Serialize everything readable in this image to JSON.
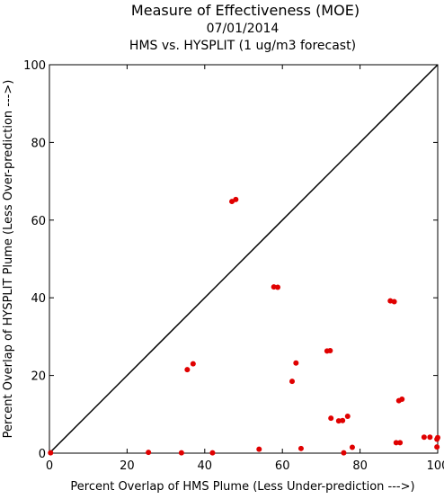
{
  "chart_data": {
    "type": "scatter",
    "title": "Measure of Effectiveness (MOE)",
    "subtitle_date": "07/01/2014",
    "subtitle_desc": "HMS vs. HYSPLIT  (1 ug/m3 forecast)",
    "xlabel": "Percent Overlap of HMS Plume (Less Under-prediction --->)",
    "ylabel": "Percent Overlap of HYSPLIT Plume (Less Over-prediction --->)",
    "xlim": [
      0,
      100
    ],
    "ylim": [
      0,
      100
    ],
    "xticks": [
      "0",
      "20",
      "40",
      "60",
      "80",
      "100"
    ],
    "yticks": [
      "0",
      "20",
      "40",
      "60",
      "80",
      "100"
    ],
    "grid": false,
    "reference_line": "diagonal y = x",
    "marker_color": "#e00000",
    "points": [
      {
        "x": 0.3,
        "y": 0.1
      },
      {
        "x": 25.5,
        "y": 0.2
      },
      {
        "x": 34.0,
        "y": 0.1
      },
      {
        "x": 42.0,
        "y": 0.1
      },
      {
        "x": 35.5,
        "y": 21.5
      },
      {
        "x": 37.0,
        "y": 23.0
      },
      {
        "x": 47.0,
        "y": 64.8
      },
      {
        "x": 48.0,
        "y": 65.3
      },
      {
        "x": 54.0,
        "y": 1.0
      },
      {
        "x": 57.8,
        "y": 42.8
      },
      {
        "x": 58.8,
        "y": 42.7
      },
      {
        "x": 62.5,
        "y": 18.5
      },
      {
        "x": 63.5,
        "y": 23.2
      },
      {
        "x": 64.8,
        "y": 1.2
      },
      {
        "x": 71.5,
        "y": 26.3
      },
      {
        "x": 72.3,
        "y": 26.4
      },
      {
        "x": 72.5,
        "y": 9.0
      },
      {
        "x": 74.5,
        "y": 8.3
      },
      {
        "x": 75.5,
        "y": 8.4
      },
      {
        "x": 75.8,
        "y": 0.1
      },
      {
        "x": 76.8,
        "y": 9.5
      },
      {
        "x": 78.0,
        "y": 1.5
      },
      {
        "x": 87.8,
        "y": 39.2
      },
      {
        "x": 88.8,
        "y": 39.0
      },
      {
        "x": 89.3,
        "y": 2.7
      },
      {
        "x": 90.3,
        "y": 2.7
      },
      {
        "x": 90.0,
        "y": 13.5
      },
      {
        "x": 90.8,
        "y": 13.9
      },
      {
        "x": 96.5,
        "y": 4.1
      },
      {
        "x": 98.0,
        "y": 4.1
      },
      {
        "x": 99.8,
        "y": 3.6
      },
      {
        "x": 100.0,
        "y": 4.0
      },
      {
        "x": 99.8,
        "y": 1.6
      }
    ]
  }
}
